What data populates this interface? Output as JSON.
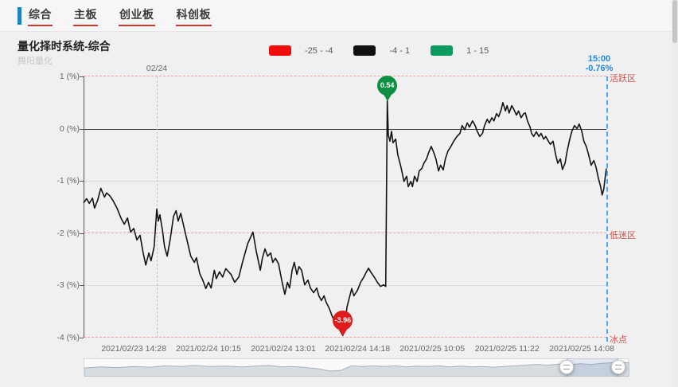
{
  "nav": {
    "tabs": [
      {
        "label": "综合"
      },
      {
        "label": "主板"
      },
      {
        "label": "创业板"
      },
      {
        "label": "科创板"
      }
    ],
    "accent_bar_color": "#1e82c6",
    "underline_color": "#d03a33"
  },
  "header": {
    "title": "量化择时系统-综合",
    "watermark": "舞阳量化"
  },
  "legend": {
    "items": [
      {
        "label": "-25 - -4",
        "color": "#f20c0c"
      },
      {
        "label": "-4 - 1",
        "color": "#111111"
      },
      {
        "label": "1 - 15",
        "color": "#0a9c5e"
      }
    ]
  },
  "chart_data": {
    "type": "line",
    "title": "量化择时系统-综合",
    "ylim": [
      -4,
      1
    ],
    "yticks": [
      {
        "label": "1 (%)",
        "v": 1
      },
      {
        "label": "0 (%)",
        "v": 0
      },
      {
        "label": "-1 (%)",
        "v": -1
      },
      {
        "label": "-2 (%)",
        "v": -2
      },
      {
        "label": "-3 (%)",
        "v": -3
      },
      {
        "label": "-4 (%)",
        "v": -4
      }
    ],
    "grid_light_levels": [
      -1,
      -3
    ],
    "zero_level": 0,
    "zones": [
      {
        "label": "活跃区",
        "v": 1
      },
      {
        "label": "低迷区",
        "v": -2
      },
      {
        "label": "冰点",
        "v": -4
      }
    ],
    "xticks": [
      "2021/02/23 14:28",
      "2021/02/24 10:15",
      "2021/02/24 13:01",
      "2021/02/24 14:18",
      "2021/02/25 10:05",
      "2021/02/25 11:22",
      "2021/02/25 14:08"
    ],
    "xticks_f": [
      0.096,
      0.239,
      0.382,
      0.524,
      0.667,
      0.81,
      0.953
    ],
    "day_divider": {
      "label": "02/24",
      "f": 0.14
    },
    "current": {
      "time": "15:00",
      "value": "-0.76%",
      "f": 1.0
    },
    "markers": [
      {
        "type": "max",
        "label": "0.54",
        "value": 0.54,
        "f": 0.581,
        "color": "#0d8f44"
      },
      {
        "type": "min",
        "label": "-3.96",
        "value": -3.96,
        "f": 0.496,
        "color": "#e01b1b"
      }
    ],
    "colors": {
      "series": "#141414",
      "zone_line": "#f0a0a0",
      "zone_label": "#d5504b",
      "grid_light": "#dcdcdc",
      "zero_line": "#3a3a3a",
      "axis": "#555555",
      "day_divider_line": "#c4c4c4",
      "current_line": "#4fa7f4",
      "current_label": "#2089e8"
    },
    "series": [
      {
        "name": "综合",
        "points": [
          [
            0,
            -1.42
          ],
          [
            0.006,
            -1.34
          ],
          [
            0.011,
            -1.43
          ],
          [
            0.017,
            -1.33
          ],
          [
            0.021,
            -1.52
          ],
          [
            0.027,
            -1.37
          ],
          [
            0.033,
            -1.14
          ],
          [
            0.04,
            -1.31
          ],
          [
            0.044,
            -1.23
          ],
          [
            0.05,
            -1.28
          ],
          [
            0.056,
            -1.37
          ],
          [
            0.064,
            -1.52
          ],
          [
            0.072,
            -1.72
          ],
          [
            0.078,
            -1.83
          ],
          [
            0.084,
            -1.71
          ],
          [
            0.09,
            -1.98
          ],
          [
            0.096,
            -1.91
          ],
          [
            0.102,
            -2.13
          ],
          [
            0.108,
            -2.04
          ],
          [
            0.114,
            -2.38
          ],
          [
            0.119,
            -2.61
          ],
          [
            0.125,
            -2.38
          ],
          [
            0.129,
            -2.53
          ],
          [
            0.135,
            -2.26
          ],
          [
            0.14,
            -1.54
          ],
          [
            0.143,
            -1.77
          ],
          [
            0.146,
            -1.65
          ],
          [
            0.151,
            -1.95
          ],
          [
            0.155,
            -2.26
          ],
          [
            0.16,
            -2.44
          ],
          [
            0.166,
            -2.1
          ],
          [
            0.172,
            -1.68
          ],
          [
            0.177,
            -1.57
          ],
          [
            0.181,
            -1.77
          ],
          [
            0.186,
            -1.62
          ],
          [
            0.192,
            -1.88
          ],
          [
            0.199,
            -2.18
          ],
          [
            0.205,
            -2.44
          ],
          [
            0.212,
            -2.56
          ],
          [
            0.216,
            -2.47
          ],
          [
            0.222,
            -2.77
          ],
          [
            0.228,
            -2.9
          ],
          [
            0.234,
            -3.06
          ],
          [
            0.239,
            -2.94
          ],
          [
            0.244,
            -3.05
          ],
          [
            0.25,
            -2.71
          ],
          [
            0.254,
            -2.87
          ],
          [
            0.26,
            -2.74
          ],
          [
            0.266,
            -2.84
          ],
          [
            0.272,
            -2.68
          ],
          [
            0.282,
            -2.79
          ],
          [
            0.289,
            -2.94
          ],
          [
            0.297,
            -2.84
          ],
          [
            0.304,
            -2.56
          ],
          [
            0.314,
            -2.2
          ],
          [
            0.324,
            -1.98
          ],
          [
            0.33,
            -2.33
          ],
          [
            0.338,
            -2.71
          ],
          [
            0.342,
            -2.48
          ],
          [
            0.347,
            -2.3
          ],
          [
            0.352,
            -2.44
          ],
          [
            0.358,
            -2.38
          ],
          [
            0.362,
            -2.56
          ],
          [
            0.367,
            -2.48
          ],
          [
            0.373,
            -2.59
          ],
          [
            0.379,
            -2.9
          ],
          [
            0.385,
            -3.17
          ],
          [
            0.39,
            -2.94
          ],
          [
            0.394,
            -3.05
          ],
          [
            0.399,
            -2.71
          ],
          [
            0.403,
            -2.56
          ],
          [
            0.408,
            -2.79
          ],
          [
            0.412,
            -2.64
          ],
          [
            0.417,
            -2.71
          ],
          [
            0.423,
            -2.99
          ],
          [
            0.429,
            -2.9
          ],
          [
            0.434,
            -3.05
          ],
          [
            0.44,
            -3.14
          ],
          [
            0.446,
            -3.05
          ],
          [
            0.45,
            -3.2
          ],
          [
            0.455,
            -3.29
          ],
          [
            0.46,
            -3.2
          ],
          [
            0.464,
            -3.32
          ],
          [
            0.47,
            -3.44
          ],
          [
            0.476,
            -3.6
          ],
          [
            0.482,
            -3.72
          ],
          [
            0.489,
            -3.84
          ],
          [
            0.496,
            -3.96
          ],
          [
            0.501,
            -3.63
          ],
          [
            0.504,
            -3.41
          ],
          [
            0.508,
            -3.25
          ],
          [
            0.513,
            -3.06
          ],
          [
            0.517,
            -3.2
          ],
          [
            0.524,
            -3.09
          ],
          [
            0.53,
            -2.94
          ],
          [
            0.536,
            -2.84
          ],
          [
            0.54,
            -2.76
          ],
          [
            0.545,
            -2.67
          ],
          [
            0.549,
            -2.74
          ],
          [
            0.556,
            -2.84
          ],
          [
            0.562,
            -2.94
          ],
          [
            0.568,
            -3.02
          ],
          [
            0.574,
            -2.99
          ],
          [
            0.578,
            -3.02
          ],
          [
            0.581,
            0.54
          ],
          [
            0.583,
            -0.12
          ],
          [
            0.586,
            -0.24
          ],
          [
            0.589,
            -0.05
          ],
          [
            0.592,
            -0.27
          ],
          [
            0.597,
            -0.2
          ],
          [
            0.601,
            -0.5
          ],
          [
            0.607,
            -0.73
          ],
          [
            0.613,
            -1.01
          ],
          [
            0.618,
            -0.91
          ],
          [
            0.621,
            -1.11
          ],
          [
            0.626,
            -1.01
          ],
          [
            0.629,
            -1.11
          ],
          [
            0.633,
            -0.91
          ],
          [
            0.638,
            -1.01
          ],
          [
            0.642,
            -0.81
          ],
          [
            0.647,
            -0.76
          ],
          [
            0.651,
            -0.66
          ],
          [
            0.656,
            -0.58
          ],
          [
            0.66,
            -0.46
          ],
          [
            0.665,
            -0.34
          ],
          [
            0.67,
            -0.46
          ],
          [
            0.674,
            -0.58
          ],
          [
            0.679,
            -0.81
          ],
          [
            0.683,
            -0.7
          ],
          [
            0.688,
            -0.79
          ],
          [
            0.692,
            -0.58
          ],
          [
            0.697,
            -0.43
          ],
          [
            0.702,
            -0.35
          ],
          [
            0.708,
            -0.24
          ],
          [
            0.714,
            -0.15
          ],
          [
            0.72,
            -0.09
          ],
          [
            0.724,
            0.06
          ],
          [
            0.729,
            -0.02
          ],
          [
            0.734,
            0.11
          ],
          [
            0.738,
            0.03
          ],
          [
            0.744,
            0.15
          ],
          [
            0.749,
            0.06
          ],
          [
            0.753,
            -0.05
          ],
          [
            0.758,
            -0.15
          ],
          [
            0.763,
            -0.09
          ],
          [
            0.767,
            0.06
          ],
          [
            0.772,
            0.18
          ],
          [
            0.776,
            0.11
          ],
          [
            0.781,
            0.21
          ],
          [
            0.785,
            0.15
          ],
          [
            0.79,
            0.29
          ],
          [
            0.794,
            0.23
          ],
          [
            0.799,
            0.37
          ],
          [
            0.802,
            0.5
          ],
          [
            0.807,
            0.34
          ],
          [
            0.81,
            0.44
          ],
          [
            0.814,
            0.3
          ],
          [
            0.819,
            0.44
          ],
          [
            0.823,
            0.37
          ],
          [
            0.828,
            0.26
          ],
          [
            0.832,
            0.34
          ],
          [
            0.837,
            0.21
          ],
          [
            0.842,
            0.29
          ],
          [
            0.845,
            0.3
          ],
          [
            0.849,
            0.15
          ],
          [
            0.854,
            0.03
          ],
          [
            0.857,
            -0.09
          ],
          [
            0.861,
            -0.15
          ],
          [
            0.866,
            -0.06
          ],
          [
            0.871,
            -0.15
          ],
          [
            0.875,
            -0.09
          ],
          [
            0.88,
            -0.2
          ],
          [
            0.884,
            -0.15
          ],
          [
            0.889,
            -0.24
          ],
          [
            0.893,
            -0.3
          ],
          [
            0.898,
            -0.24
          ],
          [
            0.903,
            -0.5
          ],
          [
            0.907,
            -0.66
          ],
          [
            0.912,
            -0.58
          ],
          [
            0.916,
            -0.78
          ],
          [
            0.921,
            -0.66
          ],
          [
            0.925,
            -0.43
          ],
          [
            0.93,
            -0.2
          ],
          [
            0.934,
            -0.05
          ],
          [
            0.939,
            0.06
          ],
          [
            0.944,
            0
          ],
          [
            0.948,
            0.09
          ],
          [
            0.953,
            -0.05
          ],
          [
            0.957,
            -0.24
          ],
          [
            0.962,
            -0.35
          ],
          [
            0.966,
            -0.5
          ],
          [
            0.971,
            -0.7
          ],
          [
            0.976,
            -0.61
          ],
          [
            0.98,
            -0.73
          ],
          [
            0.985,
            -0.96
          ],
          [
            0.989,
            -1.11
          ],
          [
            0.992,
            -1.27
          ],
          [
            0.995,
            -1.16
          ],
          [
            0.998,
            -0.91
          ],
          [
            1,
            -0.76
          ]
        ]
      }
    ],
    "datazoom": {
      "window": [
        0.886,
        0.981
      ],
      "overview_points": [
        [
          0,
          0.5
        ],
        [
          0.03,
          0.44
        ],
        [
          0.06,
          0.48
        ],
        [
          0.09,
          0.42
        ],
        [
          0.12,
          0.46
        ],
        [
          0.15,
          0.38
        ],
        [
          0.18,
          0.42
        ],
        [
          0.2,
          0.36
        ],
        [
          0.23,
          0.42
        ],
        [
          0.26,
          0.4
        ],
        [
          0.29,
          0.45
        ],
        [
          0.32,
          0.38
        ],
        [
          0.34,
          0.36
        ],
        [
          0.36,
          0.44
        ],
        [
          0.38,
          0.42
        ],
        [
          0.4,
          0.46
        ],
        [
          0.43,
          0.55
        ],
        [
          0.45,
          0.68
        ],
        [
          0.47,
          0.65
        ],
        [
          0.49,
          0.38
        ],
        [
          0.51,
          0.42
        ],
        [
          0.53,
          0.38
        ],
        [
          0.55,
          0.42
        ],
        [
          0.57,
          0.38
        ],
        [
          0.59,
          0.44
        ],
        [
          0.61,
          0.4
        ],
        [
          0.63,
          0.42
        ],
        [
          0.65,
          0.38
        ],
        [
          0.67,
          0.44
        ],
        [
          0.69,
          0.4
        ],
        [
          0.71,
          0.44
        ],
        [
          0.73,
          0.42
        ],
        [
          0.75,
          0.46
        ],
        [
          0.77,
          0.42
        ],
        [
          0.79,
          0.38
        ],
        [
          0.81,
          0.34
        ],
        [
          0.83,
          0.3
        ],
        [
          0.85,
          0.34
        ],
        [
          0.87,
          0.28
        ],
        [
          0.89,
          0.32
        ],
        [
          0.91,
          0.26
        ],
        [
          0.93,
          0.3
        ],
        [
          0.95,
          0.24
        ],
        [
          0.97,
          0.2
        ],
        [
          0.985,
          0.18
        ],
        [
          1,
          0.22
        ]
      ]
    }
  }
}
